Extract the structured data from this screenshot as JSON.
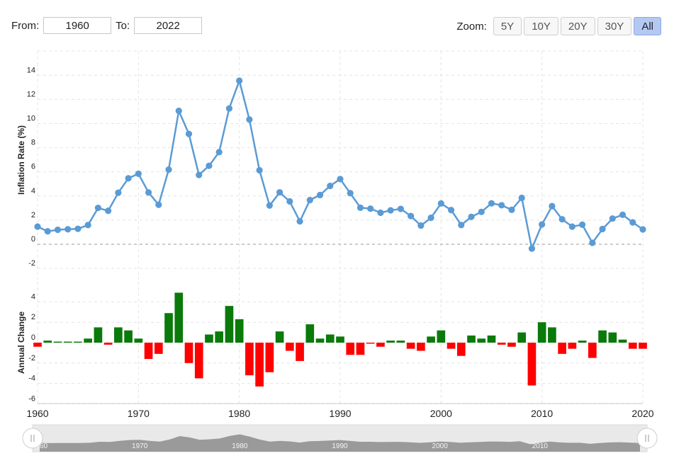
{
  "range_selector": {
    "from_label": "From:",
    "from_value": "1960",
    "to_label": "To:",
    "to_value": "2022"
  },
  "zoom": {
    "label": "Zoom:",
    "buttons": [
      "5Y",
      "10Y",
      "20Y",
      "30Y",
      "All"
    ],
    "active": "All"
  },
  "colors": {
    "line": "#5b9bd5",
    "positive": "#0a7a0a",
    "negative": "#ff0000",
    "navigator_fill": "#8c8c8c"
  },
  "chart_data": [
    {
      "type": "line",
      "ylabel": "Inflation Rate (%)",
      "ylim": [
        -2,
        14
      ],
      "yticks": [
        -2,
        0,
        2,
        4,
        6,
        8,
        10,
        12,
        14
      ],
      "x": [
        1960,
        1961,
        1962,
        1963,
        1964,
        1965,
        1966,
        1967,
        1968,
        1969,
        1970,
        1971,
        1972,
        1973,
        1974,
        1975,
        1976,
        1977,
        1978,
        1979,
        1980,
        1981,
        1982,
        1983,
        1984,
        1985,
        1986,
        1987,
        1988,
        1989,
        1990,
        1991,
        1992,
        1993,
        1994,
        1995,
        1996,
        1997,
        1998,
        1999,
        2000,
        2001,
        2002,
        2003,
        2004,
        2005,
        2006,
        2007,
        2008,
        2009,
        2010,
        2011,
        2012,
        2013,
        2014,
        2015,
        2016,
        2017,
        2018,
        2019,
        2020
      ],
      "values": [
        1.46,
        1.07,
        1.2,
        1.24,
        1.28,
        1.59,
        3.01,
        2.77,
        4.27,
        5.46,
        5.84,
        4.29,
        3.27,
        6.18,
        11.05,
        9.14,
        5.74,
        6.5,
        7.63,
        11.25,
        13.55,
        10.33,
        6.13,
        3.21,
        4.3,
        3.55,
        1.9,
        3.66,
        4.08,
        4.83,
        5.4,
        4.23,
        3.03,
        2.95,
        2.61,
        2.81,
        2.93,
        2.34,
        1.55,
        2.19,
        3.38,
        2.83,
        1.59,
        2.27,
        2.68,
        3.39,
        3.23,
        2.85,
        3.84,
        -0.36,
        1.64,
        3.16,
        2.07,
        1.46,
        1.62,
        0.12,
        1.26,
        2.13,
        2.44,
        1.81,
        1.23
      ]
    },
    {
      "type": "bar",
      "ylabel": "Annual Change",
      "ylim": [
        -6,
        6
      ],
      "yticks": [
        -6,
        -4,
        -2,
        0,
        2,
        4
      ],
      "x": [
        1960,
        1961,
        1962,
        1963,
        1964,
        1965,
        1966,
        1967,
        1968,
        1969,
        1970,
        1971,
        1972,
        1973,
        1974,
        1975,
        1976,
        1977,
        1978,
        1979,
        1980,
        1981,
        1982,
        1983,
        1984,
        1985,
        1986,
        1987,
        1988,
        1989,
        1990,
        1991,
        1992,
        1993,
        1994,
        1995,
        1996,
        1997,
        1998,
        1999,
        2000,
        2001,
        2002,
        2003,
        2004,
        2005,
        2006,
        2007,
        2008,
        2009,
        2010,
        2011,
        2012,
        2013,
        2014,
        2015,
        2016,
        2017,
        2018,
        2019,
        2020
      ],
      "values": [
        -0.4,
        0.2,
        0.1,
        0.1,
        0.1,
        0.4,
        1.5,
        -0.2,
        1.5,
        1.2,
        0.4,
        -1.6,
        -1.1,
        2.9,
        4.9,
        -2.0,
        -3.5,
        0.8,
        1.1,
        3.6,
        2.3,
        -3.2,
        -4.3,
        -2.9,
        1.1,
        -0.8,
        -1.8,
        1.8,
        0.4,
        0.8,
        0.6,
        -1.2,
        -1.2,
        -0.1,
        -0.4,
        0.2,
        0.2,
        -0.6,
        -0.8,
        0.6,
        1.2,
        -0.6,
        -1.3,
        0.7,
        0.4,
        0.7,
        -0.2,
        -0.4,
        1.0,
        -4.2,
        2.0,
        1.5,
        -1.1,
        -0.6,
        0.2,
        -1.5,
        1.2,
        1.0,
        0.3,
        -0.6,
        -0.6
      ]
    }
  ],
  "x_axis": {
    "ticks": [
      1960,
      1970,
      1980,
      1990,
      2000,
      2010,
      2020
    ]
  },
  "navigator": {
    "ticks": [
      1960,
      1970,
      1980,
      1990,
      2000,
      2010
    ]
  }
}
